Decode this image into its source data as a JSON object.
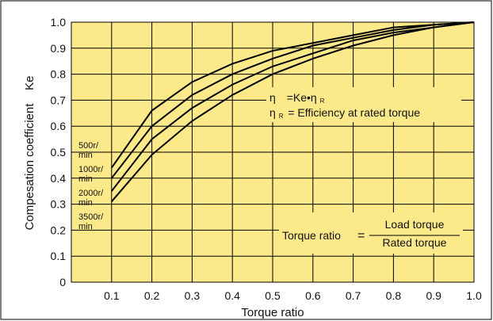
{
  "chart_data": {
    "type": "line",
    "xlabel": "Torque ratio",
    "ylabel": "Compesation coefficient    Ke",
    "xlim": [
      0,
      1.0
    ],
    "ylim": [
      0,
      1.0
    ],
    "x_ticks": [
      "0.1",
      "0.2",
      "0.3",
      "0.4",
      "0.5",
      "0.6",
      "0.7",
      "0.8",
      "0.9",
      "1.0"
    ],
    "y_ticks": [
      "0",
      "0.1",
      "0.2",
      "0.3",
      "0.4",
      "0.5",
      "0.6",
      "0.7",
      "0.8",
      "0.9",
      "1.0"
    ],
    "grid": true,
    "background": "#fce98a",
    "line_color": "#000000",
    "x": [
      0.1,
      0.2,
      0.3,
      0.4,
      0.5,
      0.6,
      0.7,
      0.8,
      0.9,
      1.0
    ],
    "series": [
      {
        "name": "500r/ min",
        "label_lines": [
          "500r/",
          "min"
        ],
        "values": [
          0.44,
          0.66,
          0.77,
          0.84,
          0.89,
          0.92,
          0.95,
          0.98,
          0.99,
          1.0
        ]
      },
      {
        "name": "1000r/ min",
        "label_lines": [
          "1000r/",
          "min"
        ],
        "values": [
          0.4,
          0.6,
          0.72,
          0.8,
          0.86,
          0.91,
          0.94,
          0.97,
          0.99,
          1.0
        ]
      },
      {
        "name": "2000r/ min",
        "label_lines": [
          "2000r/",
          "min"
        ],
        "values": [
          0.35,
          0.55,
          0.67,
          0.76,
          0.83,
          0.88,
          0.93,
          0.96,
          0.98,
          1.0
        ]
      },
      {
        "name": "3500r/ min",
        "label_lines": [
          "3500r/",
          "min"
        ],
        "values": [
          0.31,
          0.49,
          0.62,
          0.72,
          0.8,
          0.86,
          0.91,
          0.95,
          0.98,
          1.0
        ]
      }
    ],
    "annotations": {
      "eta_prefix": "η",
      "eta_rhs": "=Ke•η",
      "eta_r_sub": "R",
      "eta_r_line_eta": "η",
      "eta_r_line_rest": "= Efficiency at rated torque",
      "ratio_label": "Torque ratio",
      "ratio_equals": "=",
      "ratio_numerator": "Load torque",
      "ratio_denominator": "Rated torque"
    }
  }
}
